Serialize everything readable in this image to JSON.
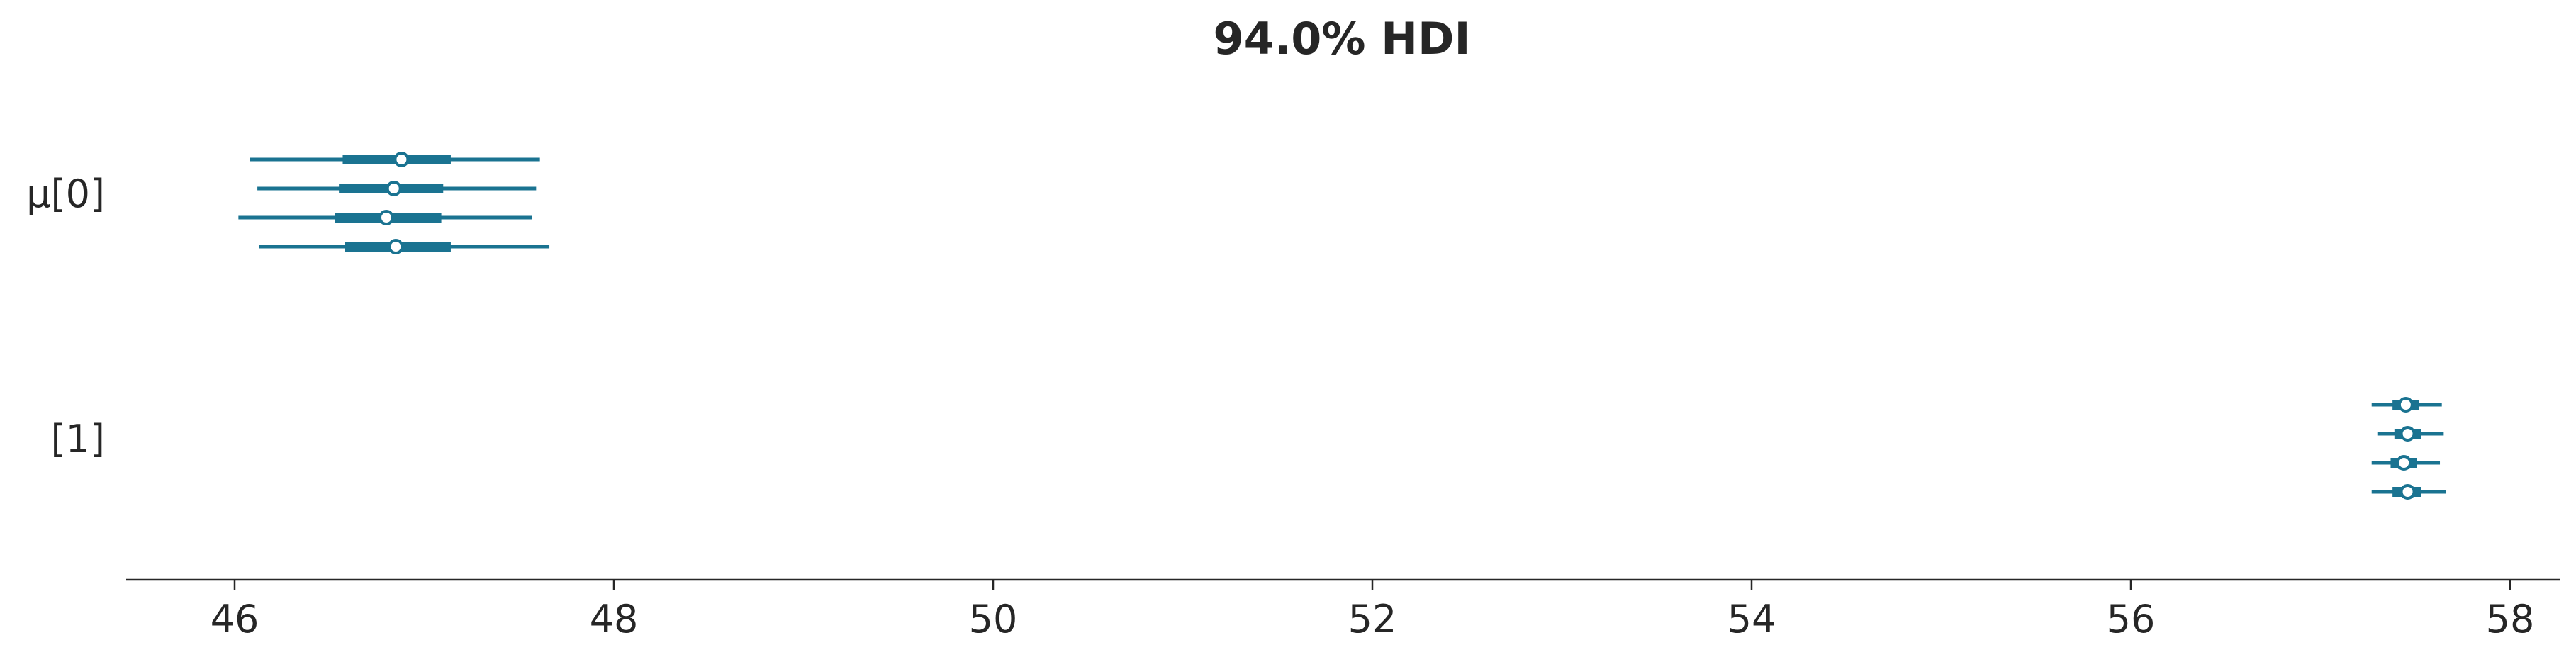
{
  "chart_data": {
    "type": "forest",
    "title": "94.0% HDI",
    "xlabel": "",
    "ylabel": "",
    "xlim": [
      45.4,
      58.25
    ],
    "xticks": [
      46,
      48,
      50,
      52,
      54,
      56,
      58
    ],
    "xtick_labels": [
      "46",
      "48",
      "50",
      "52",
      "54",
      "56",
      "58"
    ],
    "grid": false,
    "color": "#1a7391",
    "groups": [
      {
        "label": "μ[0]",
        "chains": [
          {
            "hdi_low": 46.08,
            "hdi_high": 47.61,
            "iqr_low": 46.57,
            "iqr_high": 47.14,
            "median": 46.88
          },
          {
            "hdi_low": 46.12,
            "hdi_high": 47.59,
            "iqr_low": 46.55,
            "iqr_high": 47.1,
            "median": 46.84
          },
          {
            "hdi_low": 46.02,
            "hdi_high": 47.57,
            "iqr_low": 46.53,
            "iqr_high": 47.09,
            "median": 46.8
          },
          {
            "hdi_low": 46.13,
            "hdi_high": 47.66,
            "iqr_low": 46.58,
            "iqr_high": 47.14,
            "median": 46.85
          }
        ]
      },
      {
        "label": "[1]",
        "chains": [
          {
            "hdi_low": 57.27,
            "hdi_high": 57.64,
            "iqr_low": 57.38,
            "iqr_high": 57.52,
            "median": 57.45
          },
          {
            "hdi_low": 57.3,
            "hdi_high": 57.65,
            "iqr_low": 57.39,
            "iqr_high": 57.53,
            "median": 57.46
          },
          {
            "hdi_low": 57.27,
            "hdi_high": 57.63,
            "iqr_low": 57.37,
            "iqr_high": 57.51,
            "median": 57.44
          },
          {
            "hdi_low": 57.27,
            "hdi_high": 57.66,
            "iqr_low": 57.38,
            "iqr_high": 57.53,
            "median": 57.46
          }
        ]
      }
    ]
  }
}
